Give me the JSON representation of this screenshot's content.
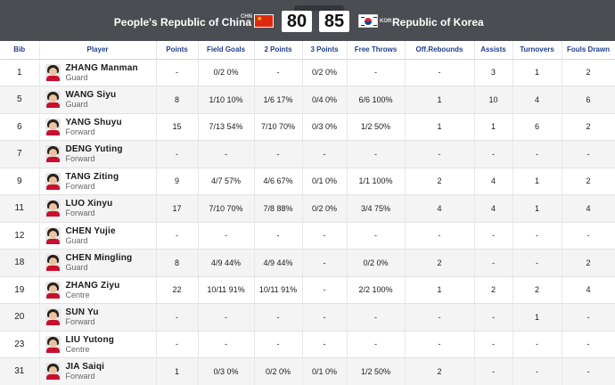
{
  "header": {
    "home_team": "People's Republic of China",
    "home_code": "CHN",
    "home_score": "80",
    "away_score": "85",
    "away_code": "KOR",
    "away_team": "Republic of Korea",
    "colors": {
      "bar": "#4a4d52",
      "header_text": "#1f3f8a"
    }
  },
  "columns": [
    "Bib",
    "Player",
    "Points",
    "Field Goals",
    "2 Points",
    "3 Points",
    "Free Throws",
    "Off.Rebounds",
    "Assists",
    "Turnovers",
    "Fouls Drawn"
  ],
  "rows": [
    {
      "bib": "1",
      "name": "ZHANG Manman",
      "pos": "Guard",
      "points": "-",
      "fg": "0/2 0%",
      "p2": "-",
      "p3": "0/2 0%",
      "ft": "-",
      "oreb": "-",
      "ast": "3",
      "to": "1",
      "fd": "2"
    },
    {
      "bib": "5",
      "name": "WANG Siyu",
      "pos": "Guard",
      "points": "8",
      "fg": "1/10 10%",
      "p2": "1/6 17%",
      "p3": "0/4 0%",
      "ft": "6/6 100%",
      "oreb": "1",
      "ast": "10",
      "to": "4",
      "fd": "6"
    },
    {
      "bib": "6",
      "name": "YANG Shuyu",
      "pos": "Forward",
      "points": "15",
      "fg": "7/13 54%",
      "p2": "7/10 70%",
      "p3": "0/3 0%",
      "ft": "1/2 50%",
      "oreb": "1",
      "ast": "1",
      "to": "6",
      "fd": "2"
    },
    {
      "bib": "7",
      "name": "DENG Yuting",
      "pos": "Forward",
      "points": "-",
      "fg": "-",
      "p2": "-",
      "p3": "-",
      "ft": "-",
      "oreb": "-",
      "ast": "-",
      "to": "-",
      "fd": "-"
    },
    {
      "bib": "9",
      "name": "TANG Ziting",
      "pos": "Forward",
      "points": "9",
      "fg": "4/7 57%",
      "p2": "4/6 67%",
      "p3": "0/1 0%",
      "ft": "1/1 100%",
      "oreb": "2",
      "ast": "4",
      "to": "1",
      "fd": "2"
    },
    {
      "bib": "11",
      "name": "LUO Xinyu",
      "pos": "Forward",
      "points": "17",
      "fg": "7/10 70%",
      "p2": "7/8 88%",
      "p3": "0/2 0%",
      "ft": "3/4 75%",
      "oreb": "4",
      "ast": "4",
      "to": "1",
      "fd": "4"
    },
    {
      "bib": "12",
      "name": "CHEN Yujie",
      "pos": "Guard",
      "points": "-",
      "fg": "-",
      "p2": "-",
      "p3": "-",
      "ft": "-",
      "oreb": "-",
      "ast": "-",
      "to": "-",
      "fd": "-"
    },
    {
      "bib": "18",
      "name": "CHEN Mingling",
      "pos": "Guard",
      "points": "8",
      "fg": "4/9 44%",
      "p2": "4/9 44%",
      "p3": "-",
      "ft": "0/2 0%",
      "oreb": "2",
      "ast": "-",
      "to": "-",
      "fd": "2"
    },
    {
      "bib": "19",
      "name": "ZHANG Ziyu",
      "pos": "Centre",
      "points": "22",
      "fg": "10/11 91%",
      "p2": "10/11 91%",
      "p3": "-",
      "ft": "2/2 100%",
      "oreb": "1",
      "ast": "2",
      "to": "2",
      "fd": "4"
    },
    {
      "bib": "20",
      "name": "SUN Yu",
      "pos": "Forward",
      "points": "-",
      "fg": "-",
      "p2": "-",
      "p3": "-",
      "ft": "-",
      "oreb": "-",
      "ast": "-",
      "to": "1",
      "fd": "-"
    },
    {
      "bib": "23",
      "name": "LIU Yutong",
      "pos": "Centre",
      "points": "-",
      "fg": "-",
      "p2": "-",
      "p3": "-",
      "ft": "-",
      "oreb": "-",
      "ast": "-",
      "to": "-",
      "fd": "-"
    },
    {
      "bib": "31",
      "name": "JIA Saiqi",
      "pos": "Forward",
      "points": "1",
      "fg": "0/3 0%",
      "p2": "0/2 0%",
      "p3": "0/1 0%",
      "ft": "1/2 50%",
      "oreb": "2",
      "ast": "-",
      "to": "-",
      "fd": "-"
    }
  ]
}
